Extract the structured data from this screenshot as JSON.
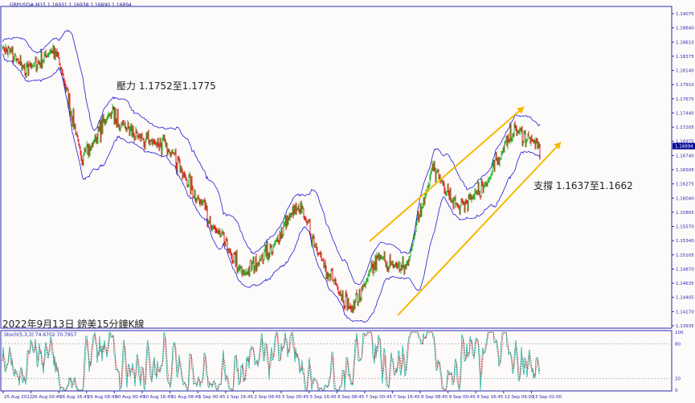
{
  "header": {
    "symbol": "GBPUSD#,M15",
    "ohlc": "1.16931 1.16938 1.16890 1.16894"
  },
  "annotations": {
    "resistance": "壓力 1.1752至1.1775",
    "support": "支撐 1.1637至1.1662",
    "caption": "2022年9月13日 鎊美15分鐘K線"
  },
  "indicator": {
    "label": "Stoch(5,3,3) 74.6702 70.7957"
  },
  "chart_data": {
    "type": "candlestick",
    "price_axis": [
      "1.19075",
      "1.18840",
      "1.18610",
      "1.18375",
      "1.18140",
      "1.17910",
      "1.17675",
      "1.17440",
      "1.17205",
      "1.16975",
      "1.16740",
      "1.16505",
      "1.16275",
      "1.16040",
      "1.15805",
      "1.15570",
      "1.15340",
      "1.15105",
      "1.14870",
      "1.14635",
      "1.14405",
      "1.14170",
      "1.13935"
    ],
    "price_range": [
      1.13935,
      1.19075
    ],
    "current_price": "1.16894",
    "stoch_axis": [
      "100",
      "80",
      "20",
      "0"
    ],
    "time_axis": [
      "25 Aug 2022",
      "26 Aug 00:45",
      "26 Aug 16:45",
      "29 Aug 08:45",
      "30 Aug 00:45",
      "30 Aug 16:45",
      "31 Aug 08:45",
      "1 Sep 00:45",
      "1 Sep 16:45",
      "2 Sep 08:45",
      "5 Sep 00:45",
      "5 Sep 16:45",
      "6 Sep 08:45",
      "7 Sep 00:45",
      "7 Sep 16:45",
      "8 Sep 08:45",
      "9 Sep 00:45",
      "9 Sep 16:45",
      "12 Sep 09:00",
      "13 Sep 01:00"
    ],
    "approx_close_path": [
      1.1851,
      1.1817,
      1.1851,
      1.1665,
      1.1745,
      1.1705,
      1.1692,
      1.1625,
      1.1546,
      1.148,
      1.1519,
      1.1599,
      1.1493,
      1.142,
      1.1506,
      1.1486,
      1.1652,
      1.1586,
      1.1625,
      1.1718,
      1.1689
    ],
    "colors": {
      "up": "#2bb32b",
      "down": "#e0201e",
      "bands": "#1c1cd0",
      "channel": "#f5b800",
      "stoch_main": "#20b0a0",
      "stoch_signal": "#e02020",
      "axis": "#2a2ab0"
    }
  }
}
